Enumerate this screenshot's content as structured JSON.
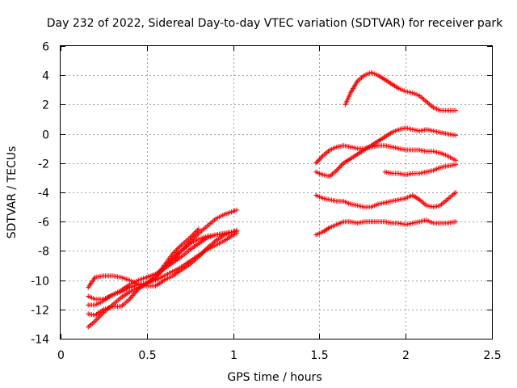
{
  "chart_data": {
    "type": "scatter",
    "title": "Day 232 of 2022, Sidereal Day-to-day VTEC variation (SDTVAR) for receiver park",
    "xlabel": "GPS time / hours",
    "ylabel": "SDTVAR / TECUs",
    "xlim": [
      0,
      2.5
    ],
    "ylim": [
      -14,
      6
    ],
    "xticks": [
      0,
      0.5,
      1,
      1.5,
      2,
      2.5
    ],
    "xtick_labels": [
      "0",
      "0.5",
      "1",
      "1.5",
      "2",
      "2.5"
    ],
    "yticks": [
      -14,
      -12,
      -10,
      -8,
      -6,
      -4,
      -2,
      0,
      2,
      4,
      6
    ],
    "ytick_labels": [
      "-14",
      "-12",
      "-10",
      "-8",
      "-6",
      "-4",
      "-2",
      "0",
      "2",
      "4",
      "6"
    ],
    "grid": true,
    "marker": "+",
    "color": "#ff0000",
    "series": [
      {
        "x": [
          0.16,
          0.2,
          0.25,
          0.3,
          0.35,
          0.4,
          0.45,
          0.5,
          0.55,
          0.6,
          0.65,
          0.7,
          0.75,
          0.8,
          0.85,
          0.9,
          0.95,
          1.0,
          1.02
        ],
        "y": [
          -10.5,
          -9.8,
          -9.7,
          -9.7,
          -9.8,
          -10.0,
          -10.3,
          -10.4,
          -10.4,
          -10.0,
          -9.7,
          -9.3,
          -8.9,
          -8.4,
          -7.8,
          -7.3,
          -6.9,
          -6.7,
          -6.6
        ]
      },
      {
        "x": [
          0.16,
          0.2,
          0.25,
          0.3,
          0.35,
          0.4,
          0.45,
          0.5,
          0.55,
          0.6,
          0.65,
          0.7,
          0.75,
          0.8,
          0.85,
          0.9,
          0.95,
          1.0,
          1.02
        ],
        "y": [
          -11.1,
          -11.3,
          -11.3,
          -11.0,
          -10.7,
          -10.3,
          -10.0,
          -9.8,
          -9.6,
          -9.2,
          -8.8,
          -8.4,
          -7.9,
          -7.5,
          -7.1,
          -6.9,
          -6.8,
          -6.7,
          -6.6
        ]
      },
      {
        "x": [
          0.16,
          0.2,
          0.25,
          0.3,
          0.35,
          0.4,
          0.45,
          0.5,
          0.55,
          0.6,
          0.65,
          0.7,
          0.75,
          0.8,
          0.85,
          0.9,
          0.95,
          1.0,
          1.02
        ],
        "y": [
          -11.7,
          -11.7,
          -11.4,
          -11.0,
          -10.8,
          -10.5,
          -10.3,
          -10.2,
          -10.0,
          -9.7,
          -9.4,
          -9.1,
          -8.7,
          -8.3,
          -7.9,
          -7.6,
          -7.3,
          -6.9,
          -6.8
        ]
      },
      {
        "x": [
          0.16,
          0.2,
          0.25,
          0.3,
          0.35,
          0.4,
          0.45,
          0.5,
          0.55,
          0.6,
          0.65,
          0.7,
          0.75,
          0.8,
          0.85,
          0.9,
          0.95,
          1.0,
          1.02
        ],
        "y": [
          -12.3,
          -12.4,
          -12.0,
          -11.8,
          -11.8,
          -11.3,
          -10.6,
          -10.2,
          -9.8,
          -9.2,
          -8.5,
          -8.0,
          -7.5,
          -7.2,
          -7.0,
          -6.9,
          -6.8,
          -6.7,
          -6.7
        ]
      },
      {
        "x": [
          0.16,
          0.2,
          0.25,
          0.3,
          0.35,
          0.4,
          0.45,
          0.5,
          0.55,
          0.6,
          0.65,
          0.7,
          0.75,
          0.8
        ],
        "y": [
          -13.2,
          -12.8,
          -12.2,
          -11.7,
          -11.2,
          -10.8,
          -10.5,
          -10.2,
          -9.8,
          -9.0,
          -8.2,
          -7.6,
          -7.1,
          -6.5
        ]
      },
      {
        "x": [
          0.5,
          0.55,
          0.6,
          0.65,
          0.7,
          0.75,
          0.8,
          0.85,
          0.9,
          0.95,
          1.0,
          1.02
        ],
        "y": [
          -9.8,
          -9.6,
          -9.2,
          -8.6,
          -8.0,
          -7.4,
          -6.8,
          -6.3,
          -5.8,
          -5.5,
          -5.3,
          -5.2
        ]
      },
      {
        "x": [
          1.48,
          1.52,
          1.56,
          1.6,
          1.64,
          1.68,
          1.72,
          1.76,
          1.8,
          1.84,
          1.88,
          1.92,
          1.96,
          2.0,
          2.04,
          2.08,
          2.12,
          2.16,
          2.2,
          2.24,
          2.29
        ],
        "y": [
          -2.0,
          -1.5,
          -1.1,
          -0.9,
          -0.8,
          -0.9,
          -1.0,
          -1.0,
          -0.9,
          -0.8,
          -0.8,
          -0.9,
          -1.0,
          -1.1,
          -1.1,
          -1.1,
          -1.2,
          -1.2,
          -1.3,
          -1.5,
          -1.8
        ]
      },
      {
        "x": [
          1.48,
          1.52,
          1.56,
          1.6,
          1.64,
          1.68,
          1.72,
          1.76,
          1.8,
          1.84,
          1.88,
          1.92,
          1.96,
          2.0,
          2.04,
          2.08,
          2.12,
          2.16,
          2.2,
          2.24,
          2.29
        ],
        "y": [
          -2.6,
          -2.8,
          -2.9,
          -2.5,
          -2.0,
          -1.7,
          -1.4,
          -1.1,
          -0.8,
          -0.5,
          -0.2,
          0.1,
          0.3,
          0.4,
          0.3,
          0.2,
          0.3,
          0.2,
          0.1,
          0.0,
          -0.1
        ]
      },
      {
        "x": [
          1.48,
          1.52,
          1.56,
          1.6,
          1.64,
          1.68,
          1.72,
          1.76,
          1.8,
          1.84,
          1.88,
          1.92,
          1.96,
          2.0,
          2.04,
          2.08,
          2.12,
          2.16,
          2.2,
          2.24,
          2.29
        ],
        "y": [
          -4.2,
          -4.4,
          -4.5,
          -4.6,
          -4.6,
          -4.8,
          -4.9,
          -5.0,
          -5.0,
          -4.8,
          -4.7,
          -4.6,
          -4.5,
          -4.4,
          -4.2,
          -4.5,
          -4.9,
          -5.0,
          -4.9,
          -4.5,
          -4.0
        ]
      },
      {
        "x": [
          1.48,
          1.52,
          1.56,
          1.6,
          1.64,
          1.68,
          1.72,
          1.76,
          1.8,
          1.84,
          1.88,
          1.92,
          1.96,
          2.0,
          2.04,
          2.08,
          2.12,
          2.16,
          2.2,
          2.24,
          2.29
        ],
        "y": [
          -6.9,
          -6.7,
          -6.4,
          -6.2,
          -6.0,
          -6.0,
          -6.1,
          -6.0,
          -6.0,
          -6.0,
          -6.0,
          -6.1,
          -6.1,
          -6.2,
          -6.1,
          -6.0,
          -5.9,
          -6.1,
          -6.1,
          -6.1,
          -6.0
        ]
      },
      {
        "x": [
          1.88,
          1.92,
          1.96,
          2.0,
          2.04,
          2.08,
          2.12,
          2.16,
          2.2,
          2.24,
          2.29
        ],
        "y": [
          -2.6,
          -2.7,
          -2.7,
          -2.8,
          -2.7,
          -2.7,
          -2.6,
          -2.5,
          -2.3,
          -2.2,
          -2.1
        ]
      },
      {
        "x": [
          1.65,
          1.68,
          1.72,
          1.76,
          1.8,
          1.84,
          1.88,
          1.92,
          1.96,
          2.0,
          2.04,
          2.08,
          2.12,
          2.16,
          2.2,
          2.24,
          2.29
        ],
        "y": [
          2.0,
          2.8,
          3.6,
          4.0,
          4.2,
          4.0,
          3.7,
          3.4,
          3.1,
          2.9,
          2.8,
          2.6,
          2.2,
          1.8,
          1.6,
          1.6,
          1.6
        ]
      }
    ]
  }
}
